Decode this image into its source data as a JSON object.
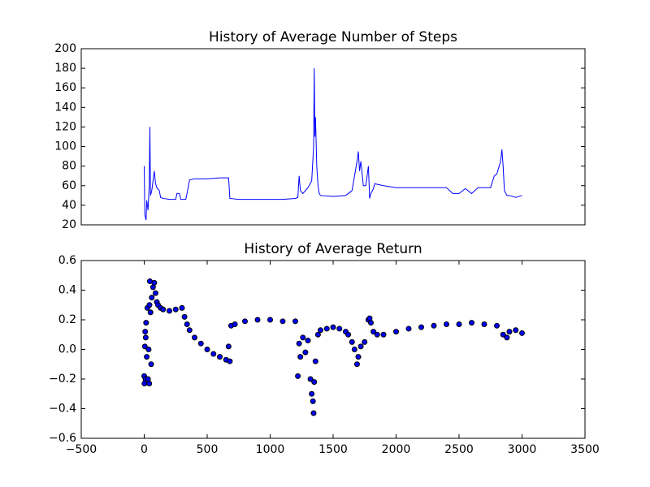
{
  "chart_data": [
    {
      "type": "line",
      "title": "History of Average Number of Steps",
      "color": "#0000ff",
      "x": [
        0,
        5,
        15,
        20,
        30,
        40,
        45,
        50,
        60,
        70,
        80,
        90,
        100,
        120,
        130,
        150,
        200,
        250,
        260,
        280,
        290,
        330,
        340,
        360,
        400,
        500,
        600,
        670,
        680,
        750,
        900,
        1000,
        1100,
        1200,
        1220,
        1230,
        1240,
        1260,
        1300,
        1330,
        1345,
        1350,
        1355,
        1360,
        1370,
        1380,
        1390,
        1400,
        1500,
        1600,
        1650,
        1670,
        1690,
        1700,
        1710,
        1720,
        1740,
        1760,
        1780,
        1790,
        1800,
        1820,
        1830,
        1900,
        2000,
        2200,
        2400,
        2450,
        2500,
        2550,
        2600,
        2650,
        2750,
        2780,
        2800,
        2830,
        2840,
        2850,
        2860,
        2880,
        2900,
        2950,
        3000
      ],
      "values": [
        80,
        30,
        25,
        45,
        35,
        60,
        120,
        50,
        55,
        65,
        75,
        62,
        58,
        55,
        48,
        47,
        46,
        46,
        52,
        52,
        46,
        46,
        52,
        66,
        67,
        67,
        68,
        68,
        47,
        46,
        46,
        46,
        46,
        47,
        48,
        70,
        55,
        52,
        58,
        65,
        100,
        180,
        110,
        130,
        80,
        60,
        52,
        50,
        49,
        50,
        55,
        70,
        85,
        95,
        75,
        85,
        60,
        60,
        80,
        47,
        52,
        57,
        62,
        60,
        58,
        58,
        58,
        52,
        52,
        57,
        52,
        58,
        58,
        70,
        72,
        85,
        97,
        80,
        55,
        50,
        50,
        48,
        50
      ],
      "xlim": [
        -500,
        3500
      ],
      "ylim": [
        20,
        200
      ],
      "yticks": [
        20,
        40,
        60,
        80,
        100,
        120,
        140,
        160,
        180,
        200
      ]
    },
    {
      "type": "scatter",
      "title": "History of Average Return",
      "color": "#0000ff",
      "x": [
        0,
        2,
        5,
        8,
        10,
        12,
        15,
        20,
        25,
        30,
        35,
        40,
        42,
        45,
        50,
        55,
        60,
        70,
        80,
        90,
        100,
        110,
        130,
        150,
        200,
        250,
        300,
        320,
        340,
        360,
        400,
        450,
        500,
        550,
        600,
        650,
        670,
        680,
        690,
        720,
        800,
        900,
        1000,
        1100,
        1200,
        1220,
        1230,
        1240,
        1260,
        1280,
        1300,
        1320,
        1330,
        1340,
        1345,
        1350,
        1360,
        1380,
        1400,
        1450,
        1500,
        1550,
        1600,
        1620,
        1650,
        1670,
        1690,
        1700,
        1720,
        1750,
        1780,
        1790,
        1800,
        1820,
        1850,
        1900,
        2000,
        2100,
        2200,
        2300,
        2400,
        2500,
        2600,
        2700,
        2800,
        2850,
        2880,
        2900,
        2950,
        3000
      ],
      "values": [
        -0.18,
        -0.23,
        0.02,
        0.12,
        -0.2,
        0.08,
        0.18,
        -0.05,
        0.28,
        -0.2,
        0.0,
        -0.23,
        0.3,
        0.46,
        0.25,
        -0.1,
        0.35,
        0.42,
        0.45,
        0.38,
        0.32,
        0.3,
        0.28,
        0.27,
        0.26,
        0.27,
        0.28,
        0.22,
        0.17,
        0.13,
        0.08,
        0.04,
        0.0,
        -0.03,
        -0.05,
        -0.07,
        0.02,
        -0.08,
        0.16,
        0.17,
        0.19,
        0.2,
        0.2,
        0.19,
        0.19,
        -0.18,
        0.04,
        -0.05,
        0.08,
        -0.02,
        0.06,
        -0.2,
        -0.3,
        -0.35,
        -0.43,
        -0.22,
        -0.08,
        0.1,
        0.13,
        0.14,
        0.15,
        0.14,
        0.12,
        0.1,
        0.05,
        0.0,
        -0.1,
        -0.05,
        0.02,
        0.05,
        0.2,
        0.21,
        0.18,
        0.12,
        0.1,
        0.1,
        0.12,
        0.14,
        0.15,
        0.16,
        0.17,
        0.17,
        0.18,
        0.17,
        0.16,
        0.1,
        0.08,
        0.12,
        0.13,
        0.11
      ],
      "xlim": [
        -500,
        3500
      ],
      "xticks": [
        {
          "value": -500,
          "label": "−500"
        },
        0,
        500,
        1000,
        1500,
        2000,
        2500,
        3000,
        3500
      ],
      "ylim": [
        -0.6,
        0.6
      ],
      "yticks": [
        {
          "value": -0.6,
          "label": "−0.6"
        },
        {
          "value": -0.4,
          "label": "−0.4"
        },
        {
          "value": -0.2,
          "label": "−0.2"
        },
        {
          "value": 0,
          "label": "0.0"
        },
        0.2,
        0.4,
        0.6
      ]
    }
  ]
}
